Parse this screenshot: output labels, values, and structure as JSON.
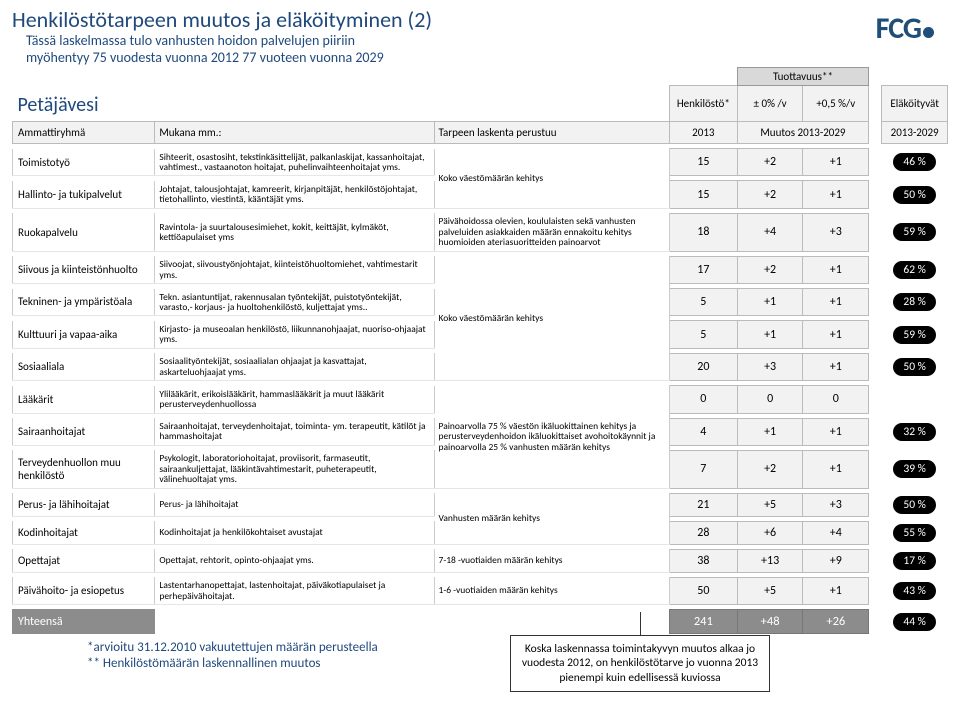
{
  "title": "Henkilöstötarpeen muutos ja eläköityminen (2)",
  "subtitle_l1": "Tässä laskelmassa tulo vanhusten hoidon palvelujen piiriin",
  "subtitle_l2": "myöhentyy 75 vuodesta vuonna 2012 77 vuoteen vuonna 2029",
  "logo": "FCG",
  "region": "Petäjävesi",
  "headers": {
    "tuottavuus": "Tuottavuus**",
    "henkilosto": "Henkilöstö*",
    "pm0": "± 0% /v",
    "pm05": "+0,5 %/v",
    "elakoityvat": "Eläköityvät",
    "ammattiryhma": "Ammattiryhmä",
    "mukana": "Mukana mm.:",
    "tarpeen": "Tarpeen laskenta perustuu",
    "v2013": "2013",
    "muutos": "Muutos 2013-2029",
    "elv": "2013-2029"
  },
  "basis": {
    "g0": "Koko väestömäärän kehitys",
    "g1": "Päivähoidossa olevien, koululaisten sekä vanhusten palveluiden asiakkaiden määrän ennakoitu kehitys huomioiden ateriasuoritteiden painoarvot",
    "g2": "Koko väestömäärän kehitys",
    "g3": "Painoarvolla 75 % väestön ikäluokittainen kehitys ja perusterveydenhoidon ikäluokittaiset avohoitokäynnit ja painoarvolla 25 % vanhusten määrän kehitys",
    "g4": "Vanhusten määrän kehitys",
    "g5": "7-18 -vuotiaiden määrän kehitys",
    "g6": "1-6 -vuotiaiden määrän kehitys"
  },
  "rows": [
    {
      "a": "Toimistotyö",
      "b": "Sihteerit, osastosiht, tekstinkäsittelijät, palkanlaskijat, kassanhoitajat, vahtimest., vastaanoton hoitajat, puhelinvaihteenhoitajat yms.",
      "d": "15",
      "e": "+2",
      "f": "+1",
      "g": "46 %"
    },
    {
      "a": "Hallinto- ja tukipalvelut",
      "b": "Johtajat, talousjohtajat, kamreerit, kirjanpitäjät, henkilöstöjohtajat, tietohallinto, viestintä, kääntäjät yms.",
      "d": "15",
      "e": "+2",
      "f": "+1",
      "g": "50 %"
    },
    {
      "a": "Ruokapalvelu",
      "b": "Ravintola- ja suurtalousesimiehet, kokit, keittäjät, kylmäköt, kettiöapulaiset yms",
      "d": "18",
      "e": "+4",
      "f": "+3",
      "g": "59 %"
    },
    {
      "a": "Siivous ja kiinteistönhuolto",
      "b": "Siivoojat, siivoustyönjohtajat, kiinteistöhuoltomiehet, vahtimestarit yms.",
      "d": "17",
      "e": "+2",
      "f": "+1",
      "g": "62 %"
    },
    {
      "a": "Tekninen- ja ympäristöala",
      "b": "Tekn. asiantuntijat, rakennusalan työntekijät, puistotyöntekijät, varasto,- korjaus- ja huoltohenkilöstö, kuljettajat yms..",
      "d": "5",
      "e": "+1",
      "f": "+1",
      "g": "28 %"
    },
    {
      "a": "Kulttuuri ja vapaa-aika",
      "b": "Kirjasto- ja museoalan henkilöstö, liikunnanohjaajat, nuoriso-ohjaajat yms.",
      "d": "5",
      "e": "+1",
      "f": "+1",
      "g": "59 %"
    },
    {
      "a": "Sosiaaliala",
      "b": "Sosiaalityöntekijät, sosiaalialan ohjaajat ja kasvattajat, askarteluohjaajat yms.",
      "d": "20",
      "e": "+3",
      "f": "+1",
      "g": "50 %"
    },
    {
      "a": "Lääkärit",
      "b": "Ylilääkärit, erikoislääkärit, hammaslääkärit ja muut lääkärit perusterveydenhuollossa",
      "d": "0",
      "e": "0",
      "f": "0",
      "g": ""
    },
    {
      "a": "Sairaanhoitajat",
      "b": "Sairaanhoitajat, terveydenhoitajat, toiminta- ym. terapeutit, kätilöt ja hammashoitajat",
      "d": "4",
      "e": "+1",
      "f": "+1",
      "g": "32 %"
    },
    {
      "a": "Terveydenhuollon muu henkilöstö",
      "b": "Psykologit, laboratoriohoitajat, proviisorit, farmaseutit, sairaankuljettajat, lääkintävahtimestarit, puheterapeutit, välinehuoltajat yms.",
      "d": "7",
      "e": "+2",
      "f": "+1",
      "g": "39 %"
    },
    {
      "a": "Perus- ja lähihoitajat",
      "b": "Perus- ja lähihoitajat",
      "d": "21",
      "e": "+5",
      "f": "+3",
      "g": "50 %"
    },
    {
      "a": "Kodinhoitajat",
      "b": "Kodinhoitajat ja henkilökohtaiset avustajat",
      "d": "28",
      "e": "+6",
      "f": "+4",
      "g": "55 %"
    },
    {
      "a": "Opettajat",
      "b": "Opettajat, rehtorit, opinto-ohjaajat yms.",
      "d": "38",
      "e": "+13",
      "f": "+9",
      "g": "17 %"
    },
    {
      "a": "Päivähoito- ja esiopetus",
      "b": "Lastentarhanopettajat, lastenhoitajat, päiväkotiapulaiset ja perhepäivähoitajat.",
      "d": "50",
      "e": "+5",
      "f": "+1",
      "g": "43 %"
    }
  ],
  "total": {
    "label": "Yhteensä",
    "d": "241",
    "e": "+48",
    "f": "+26",
    "g": "44 %"
  },
  "footnotes": {
    "l1": "*arvioitu 31.12.2010 vakuutettujen määrän perusteella",
    "l2": "** Henkilöstömäärän laskennallinen muutos"
  },
  "callout": "Koska laskennassa toimintakyvyn muutos alkaa jo vuodesta 2012, on henkilöstötarve jo vuonna 2013 pienempi kuin edellisessä kuviossa"
}
